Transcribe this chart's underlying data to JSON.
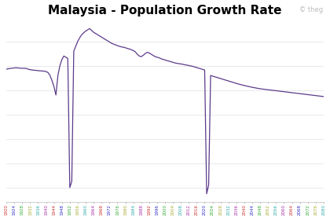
{
  "title": "Malaysia - Population Growth Rate",
  "title_fontsize": 11,
  "line_color": "#5B3A8A",
  "background_color": "#ffffff",
  "grid_color": "#e0e0e8",
  "watermark": "© theg",
  "tick_colors": [
    "#cc3333",
    "#3333cc",
    "#33aa33",
    "#aaaa33",
    "#33aaaa",
    "#aa33aa"
  ],
  "years": [
    1920,
    1921,
    1922,
    1923,
    1924,
    1925,
    1926,
    1927,
    1928,
    1929,
    1930,
    1931,
    1932,
    1933,
    1934,
    1935,
    1936,
    1937,
    1938,
    1939,
    1940,
    1941,
    1942,
    1943,
    1944,
    1945,
    1946,
    1947,
    1948,
    1949,
    1950,
    1951,
    1952,
    1953,
    1954,
    1955,
    1956,
    1957,
    1958,
    1959,
    1960,
    1961,
    1962,
    1963,
    1964,
    1965,
    1966,
    1967,
    1968,
    1969,
    1970,
    1971,
    1972,
    1973,
    1974,
    1975,
    1976,
    1977,
    1978,
    1979,
    1980,
    1981,
    1982,
    1983,
    1984,
    1985,
    1986,
    1987,
    1988,
    1989,
    1990,
    1991,
    1992,
    1993,
    1994,
    1995,
    1996,
    1997,
    1998,
    1999,
    2000,
    2001,
    2002,
    2003,
    2004,
    2005,
    2006,
    2007,
    2008,
    2009,
    2010,
    2011,
    2012,
    2013,
    2014,
    2015,
    2016,
    2017,
    2018,
    2019,
    2020,
    2021,
    2022,
    2023,
    2024,
    2025,
    2026,
    2027,
    2028,
    2029,
    2030,
    2031,
    2032,
    2033,
    2034,
    2035,
    2036,
    2037,
    2038,
    2039,
    2040,
    2041,
    2042,
    2043,
    2044,
    2045,
    2046,
    2047,
    2048,
    2049,
    2050,
    2051,
    2052,
    2053,
    2054,
    2055,
    2056,
    2057,
    2058,
    2059,
    2060,
    2061,
    2062,
    2063,
    2064,
    2065,
    2066,
    2067,
    2068,
    2069,
    2070,
    2071,
    2072,
    2073,
    2074,
    2075,
    2076,
    2077,
    2078,
    2079,
    2080
  ],
  "values": [
    1.72,
    1.75,
    1.78,
    1.8,
    1.82,
    1.83,
    1.82,
    1.8,
    1.79,
    1.8,
    1.78,
    1.72,
    1.68,
    1.65,
    1.63,
    1.62,
    1.6,
    1.58,
    1.57,
    1.56,
    1.52,
    1.45,
    1.2,
    0.8,
    0.3,
    -0.4,
    1.2,
    2.0,
    2.5,
    2.8,
    2.7,
    2.6,
    -8.0,
    -7.5,
    3.2,
    3.6,
    4.0,
    4.3,
    4.55,
    4.7,
    4.85,
    4.95,
    5.05,
    4.9,
    4.75,
    4.65,
    4.55,
    4.45,
    4.35,
    4.25,
    4.15,
    4.05,
    3.95,
    3.85,
    3.78,
    3.72,
    3.65,
    3.6,
    3.55,
    3.52,
    3.48,
    3.42,
    3.38,
    3.32,
    3.25,
    3.15,
    2.95,
    2.8,
    2.75,
    2.85,
    3.0,
    3.1,
    3.05,
    2.95,
    2.85,
    2.75,
    2.7,
    2.65,
    2.58,
    2.52,
    2.48,
    2.42,
    2.38,
    2.33,
    2.28,
    2.23,
    2.2,
    2.17,
    2.15,
    2.12,
    2.08,
    2.05,
    2.02,
    1.98,
    1.95,
    1.9,
    1.85,
    1.8,
    1.75,
    1.7,
    1.65,
    -8.5,
    -7.8,
    1.2,
    1.15,
    1.1,
    1.05,
    1.0,
    0.95,
    0.9,
    0.85,
    0.8,
    0.75,
    0.7,
    0.65,
    0.6,
    0.55,
    0.5,
    0.46,
    0.42,
    0.38,
    0.34,
    0.3,
    0.27,
    0.23,
    0.2,
    0.17,
    0.14,
    0.11,
    0.09,
    0.07,
    0.05,
    0.03,
    0.01,
    -0.01,
    -0.03,
    -0.05,
    -0.07,
    -0.09,
    -0.11,
    -0.13,
    -0.15,
    -0.17,
    -0.19,
    -0.21,
    -0.23,
    -0.25,
    -0.27,
    -0.29,
    -0.31,
    -0.33,
    -0.35,
    -0.37,
    -0.39,
    -0.41,
    -0.43,
    -0.45,
    -0.47,
    -0.49,
    -0.51,
    -0.53
  ]
}
